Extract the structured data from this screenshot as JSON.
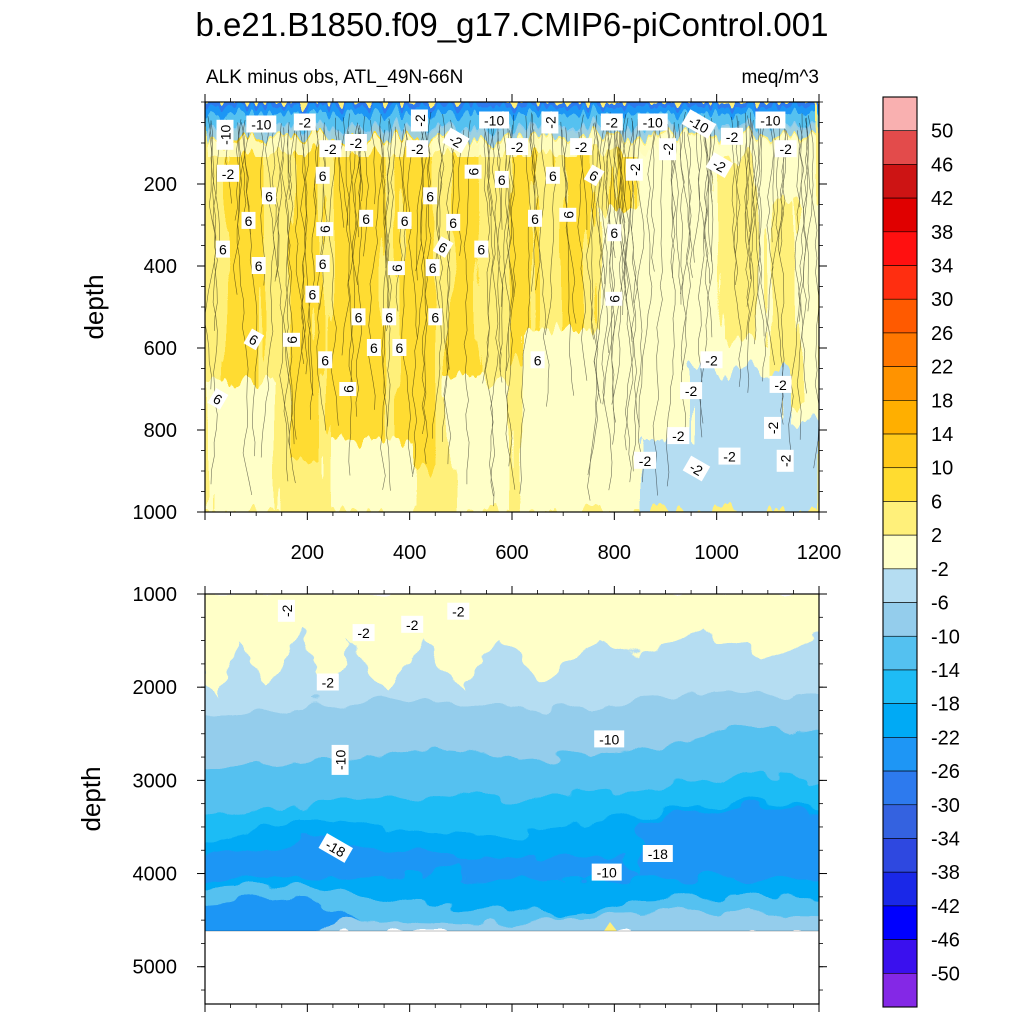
{
  "chart_data": {
    "type": "heatmap",
    "title": "b.e21.B1850.f09_g17.CMIP6-piControl.001",
    "subtitle_left": "ALK minus obs, ATL_49N-66N",
    "subtitle_right": "meq/m^3",
    "colorbar": {
      "labels": [
        "50",
        "46",
        "42",
        "38",
        "34",
        "30",
        "26",
        "22",
        "18",
        "14",
        "10",
        "6",
        "2",
        "-2",
        "-6",
        "-10",
        "-14",
        "-18",
        "-22",
        "-26",
        "-30",
        "-34",
        "-38",
        "-42",
        "-46",
        "-50"
      ],
      "colors": [
        "#f9b0b0",
        "#e34b4b",
        "#cd1414",
        "#e00000",
        "#ff1010",
        "#ff2e10",
        "#ff5a00",
        "#ff7700",
        "#ff9300",
        "#ffaf00",
        "#ffc91a",
        "#ffdc30",
        "#fff07a",
        "#ffffc8",
        "#b5ddf2",
        "#94cdec",
        "#54c1f0",
        "#1ebcf5",
        "#00aaf5",
        "#1e96f5",
        "#2d7aee",
        "#3462e0",
        "#2e48e0",
        "#1a28e8",
        "#0000ff",
        "#3a10ee",
        "#8428e6"
      ]
    },
    "panels": [
      {
        "name": "upper",
        "ylabel": "depth",
        "x_ticks": [
          200,
          400,
          600,
          800,
          1000,
          1200
        ],
        "y_ticks": [
          200,
          400,
          600,
          800,
          1000
        ],
        "xlim": [
          0,
          1200
        ],
        "ylim": [
          1000,
          0
        ],
        "contour_labels": [
          {
            "text": "-10",
            "x": 40,
            "y": 80
          },
          {
            "text": "-10",
            "x": 110,
            "y": 55
          },
          {
            "text": "-2",
            "x": 195,
            "y": 50
          },
          {
            "text": "-2",
            "x": 245,
            "y": 115
          },
          {
            "text": "-2",
            "x": 295,
            "y": 100
          },
          {
            "text": "-2",
            "x": 420,
            "y": 45
          },
          {
            "text": "-2",
            "x": 415,
            "y": 115
          },
          {
            "text": "-2",
            "x": 490,
            "y": 95
          },
          {
            "text": "-10",
            "x": 565,
            "y": 45
          },
          {
            "text": "-2",
            "x": 610,
            "y": 110
          },
          {
            "text": "-2",
            "x": 675,
            "y": 50
          },
          {
            "text": "-2",
            "x": 735,
            "y": 110
          },
          {
            "text": "-2",
            "x": 795,
            "y": 50
          },
          {
            "text": "-10",
            "x": 875,
            "y": 50
          },
          {
            "text": "-10",
            "x": 965,
            "y": 55
          },
          {
            "text": "-2",
            "x": 905,
            "y": 115
          },
          {
            "text": "-2",
            "x": 1030,
            "y": 85
          },
          {
            "text": "-10",
            "x": 1105,
            "y": 45
          },
          {
            "text": "-2",
            "x": 1135,
            "y": 115
          },
          {
            "text": "-2",
            "x": 45,
            "y": 175
          },
          {
            "text": "-2",
            "x": 840,
            "y": 165
          },
          {
            "text": "-2",
            "x": 1005,
            "y": 155
          },
          {
            "text": "6",
            "x": 125,
            "y": 230
          },
          {
            "text": "6",
            "x": 85,
            "y": 290
          },
          {
            "text": "6",
            "x": 230,
            "y": 180
          },
          {
            "text": "6",
            "x": 525,
            "y": 170
          },
          {
            "text": "6",
            "x": 580,
            "y": 190
          },
          {
            "text": "6",
            "x": 680,
            "y": 180
          },
          {
            "text": "6",
            "x": 760,
            "y": 180
          },
          {
            "text": "6",
            "x": 440,
            "y": 230
          },
          {
            "text": "6",
            "x": 235,
            "y": 310
          },
          {
            "text": "6",
            "x": 315,
            "y": 285
          },
          {
            "text": "6",
            "x": 390,
            "y": 290
          },
          {
            "text": "6",
            "x": 485,
            "y": 295
          },
          {
            "text": "6",
            "x": 645,
            "y": 285
          },
          {
            "text": "6",
            "x": 710,
            "y": 275
          },
          {
            "text": "6",
            "x": 800,
            "y": 320
          },
          {
            "text": "6",
            "x": 35,
            "y": 360
          },
          {
            "text": "6",
            "x": 105,
            "y": 400
          },
          {
            "text": "6",
            "x": 230,
            "y": 395
          },
          {
            "text": "6",
            "x": 375,
            "y": 405
          },
          {
            "text": "6",
            "x": 445,
            "y": 405
          },
          {
            "text": "6",
            "x": 465,
            "y": 355
          },
          {
            "text": "6",
            "x": 540,
            "y": 360
          },
          {
            "text": "6",
            "x": 210,
            "y": 470
          },
          {
            "text": "6",
            "x": 800,
            "y": 480
          },
          {
            "text": "6",
            "x": 300,
            "y": 525
          },
          {
            "text": "6",
            "x": 360,
            "y": 525
          },
          {
            "text": "6",
            "x": 450,
            "y": 525
          },
          {
            "text": "6",
            "x": 95,
            "y": 580
          },
          {
            "text": "6",
            "x": 170,
            "y": 580
          },
          {
            "text": "6",
            "x": 330,
            "y": 600
          },
          {
            "text": "6",
            "x": 380,
            "y": 600
          },
          {
            "text": "6",
            "x": 235,
            "y": 630
          },
          {
            "text": "6",
            "x": 650,
            "y": 630
          },
          {
            "text": "6",
            "x": 280,
            "y": 700
          },
          {
            "text": "6",
            "x": 25,
            "y": 725
          },
          {
            "text": "-2",
            "x": 990,
            "y": 630
          },
          {
            "text": "-2",
            "x": 950,
            "y": 705
          },
          {
            "text": "-2",
            "x": 1125,
            "y": 690
          },
          {
            "text": "-2",
            "x": 1110,
            "y": 795
          },
          {
            "text": "-2",
            "x": 925,
            "y": 815
          },
          {
            "text": "-2",
            "x": 860,
            "y": 875
          },
          {
            "text": "-2",
            "x": 960,
            "y": 895
          },
          {
            "text": "-2",
            "x": 1025,
            "y": 865
          },
          {
            "text": "-2",
            "x": 1135,
            "y": 875
          }
        ]
      },
      {
        "name": "lower",
        "ylabel": "depth",
        "x_ticks": [],
        "y_ticks": [
          1000,
          2000,
          3000,
          4000,
          5000
        ],
        "xlim": [
          0,
          1200
        ],
        "ylim": [
          5400,
          1000
        ],
        "contour_labels": [
          {
            "text": "-2",
            "x": 160,
            "y": 1180
          },
          {
            "text": "-2",
            "x": 310,
            "y": 1420
          },
          {
            "text": "-2",
            "x": 405,
            "y": 1330
          },
          {
            "text": "-2",
            "x": 495,
            "y": 1190
          },
          {
            "text": "-2",
            "x": 240,
            "y": 1950
          },
          {
            "text": "-10",
            "x": 265,
            "y": 2780
          },
          {
            "text": "-10",
            "x": 790,
            "y": 2560
          },
          {
            "text": "-18",
            "x": 255,
            "y": 3730
          },
          {
            "text": "-18",
            "x": 885,
            "y": 3790
          },
          {
            "text": "-10",
            "x": 785,
            "y": 3990
          }
        ]
      }
    ]
  }
}
